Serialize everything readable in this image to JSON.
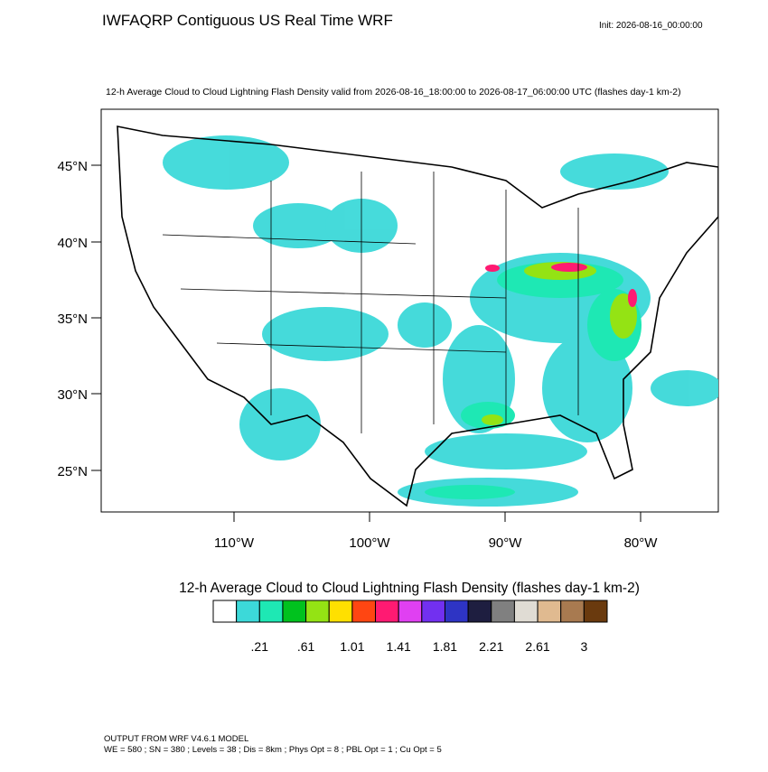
{
  "header": {
    "title": "IWFAQRP Contiguous US Real Time WRF",
    "init": "Init: 2026-08-16_00:00:00"
  },
  "map": {
    "subtitle": "12-h Average Cloud to Cloud Lightning Flash Density valid from 2026-08-16_18:00:00 to 2026-08-17_06:00:00 UTC   (flashes day-1 km-2)",
    "lat_labels": [
      "45°N",
      "40°N",
      "35°N",
      "30°N",
      "25°N"
    ],
    "lon_labels": [
      "110°W",
      "100°W",
      "90°W",
      "80°W"
    ]
  },
  "colorbar": {
    "title": "12-h Average Cloud to Cloud Lightning Flash Density  (flashes day-1 km-2)",
    "colors": [
      "#ffffff",
      "#3cd9d9",
      "#1ee8b4",
      "#00c21e",
      "#94e314",
      "#ffe000",
      "#ff4612",
      "#ff1a72",
      "#e040f2",
      "#7230f0",
      "#2e34c4",
      "#1e1e40",
      "#808080",
      "#e0dcd4",
      "#e0ba90",
      "#a87a50",
      "#6a3a0e"
    ],
    "labels": [
      ".21",
      ".61",
      "1.01",
      "1.41",
      "1.81",
      "2.21",
      "2.61",
      "3"
    ]
  },
  "footer": {
    "lines": [
      "OUTPUT FROM WRF V4.6.1 MODEL",
      "WE = 580 ; SN = 380 ; Levels = 38 ; Dis = 8km ; Phys Opt = 8 ; PBL Opt = 1 ; Cu Opt = 5"
    ]
  }
}
